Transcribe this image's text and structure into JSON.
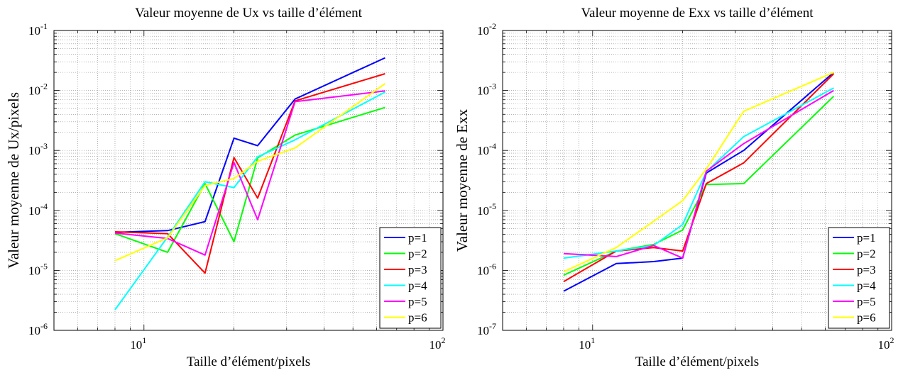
{
  "chart_data": [
    {
      "type": "line",
      "title": "Valeur moyenne de Ux vs taille d’élément",
      "xlabel": "Taille d’élément/pixels",
      "ylabel": "Valeur moyenne de Ux/pixels",
      "xscale": "log",
      "yscale": "log",
      "xlim": [
        5,
        100
      ],
      "ylim": [
        1e-06,
        0.1
      ],
      "xticks": [
        {
          "value": 10,
          "base": "10",
          "exp": "1"
        },
        {
          "value": 100,
          "base": "10",
          "exp": "2"
        }
      ],
      "yticks": [
        {
          "value": 1e-06,
          "base": "10",
          "exp": "-6"
        },
        {
          "value": 1e-05,
          "base": "10",
          "exp": "-5"
        },
        {
          "value": 0.0001,
          "base": "10",
          "exp": "-4"
        },
        {
          "value": 0.001,
          "base": "10",
          "exp": "-3"
        },
        {
          "value": 0.01,
          "base": "10",
          "exp": "-2"
        },
        {
          "value": 0.1,
          "base": "10",
          "exp": "-1"
        }
      ],
      "grid": true,
      "legend_position": "bottom-right",
      "x": [
        8,
        12,
        16,
        20,
        24,
        32,
        64
      ],
      "series": [
        {
          "name": "p=1",
          "color": "#0000ff",
          "values": [
            4.3e-05,
            4.6e-05,
            6.5e-05,
            0.0016,
            0.0012,
            0.0072,
            0.035
          ]
        },
        {
          "name": "p=2",
          "color": "#00ff00",
          "values": [
            4.1e-05,
            2e-05,
            0.00028,
            3e-05,
            0.00075,
            0.0018,
            0.0052
          ]
        },
        {
          "name": "p=3",
          "color": "#ff0000",
          "values": [
            4.4e-05,
            4.1e-05,
            9e-06,
            0.00076,
            0.00016,
            0.0067,
            0.019
          ]
        },
        {
          "name": "p=4",
          "color": "#00ffff",
          "values": [
            2.2e-06,
            3.6e-05,
            0.0003,
            0.00024,
            0.00078,
            0.0015,
            0.0094
          ]
        },
        {
          "name": "p=5",
          "color": "#ff00ff",
          "values": [
            4.2e-05,
            3.4e-05,
            1.8e-05,
            0.00063,
            7e-05,
            0.0065,
            0.0098
          ]
        },
        {
          "name": "p=6",
          "color": "#ffff00",
          "values": [
            1.45e-05,
            3.5e-05,
            0.00026,
            0.00034,
            0.00066,
            0.0011,
            0.013
          ]
        }
      ]
    },
    {
      "type": "line",
      "title": "Valeur moyenne de Exx vs taille d’élément",
      "xlabel": "Taille d’élément/pixels",
      "ylabel": "Valeur moyenne de Exx",
      "xscale": "log",
      "yscale": "log",
      "xlim": [
        5,
        100
      ],
      "ylim": [
        1e-07,
        0.01
      ],
      "xticks": [
        {
          "value": 10,
          "base": "10",
          "exp": "1"
        },
        {
          "value": 100,
          "base": "10",
          "exp": "2"
        }
      ],
      "yticks": [
        {
          "value": 1e-07,
          "base": "10",
          "exp": "-7"
        },
        {
          "value": 1e-06,
          "base": "10",
          "exp": "-6"
        },
        {
          "value": 1e-05,
          "base": "10",
          "exp": "-5"
        },
        {
          "value": 0.0001,
          "base": "10",
          "exp": "-4"
        },
        {
          "value": 0.001,
          "base": "10",
          "exp": "-3"
        },
        {
          "value": 0.01,
          "base": "10",
          "exp": "-2"
        }
      ],
      "grid": true,
      "legend_position": "bottom-right",
      "x": [
        8,
        12,
        16,
        20,
        24,
        32,
        64
      ],
      "series": [
        {
          "name": "p=1",
          "color": "#0000ff",
          "values": [
            4.5e-07,
            1.3e-06,
            1.4e-06,
            1.6e-06,
            4.2e-05,
            0.0001,
            0.002
          ]
        },
        {
          "name": "p=2",
          "color": "#00ff00",
          "values": [
            8.3e-07,
            2.1e-06,
            2.7e-06,
            4.7e-06,
            2.7e-05,
            2.8e-05,
            0.0008
          ]
        },
        {
          "name": "p=3",
          "color": "#ff0000",
          "values": [
            6.5e-07,
            2.1e-06,
            2.4e-06,
            2.1e-06,
            2.8e-05,
            6.2e-05,
            0.0019
          ]
        },
        {
          "name": "p=4",
          "color": "#00ffff",
          "values": [
            1.6e-06,
            2.1e-06,
            2.6e-06,
            5.8e-06,
            4.4e-05,
            0.00017,
            0.0011
          ]
        },
        {
          "name": "p=5",
          "color": "#ff00ff",
          "values": [
            1.9e-06,
            1.7e-06,
            2.6e-06,
            1.6e-06,
            4.5e-05,
            0.00013,
            0.001
          ]
        },
        {
          "name": "p=6",
          "color": "#ffff00",
          "values": [
            9.5e-07,
            2.4e-06,
            6.6e-06,
            1.45e-05,
            4.9e-05,
            0.00045,
            0.002
          ]
        }
      ]
    }
  ]
}
